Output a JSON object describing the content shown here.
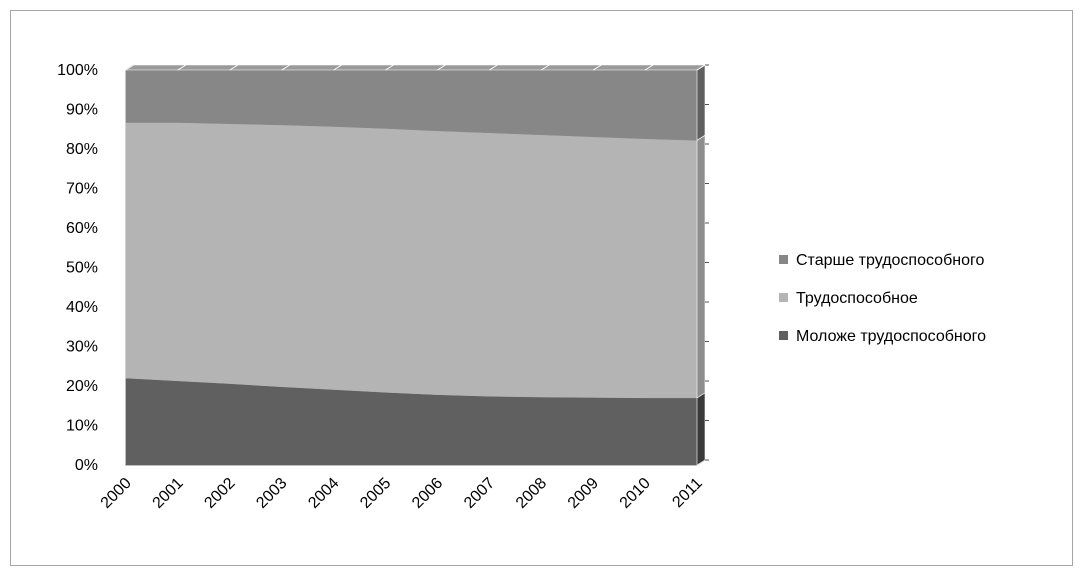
{
  "chart_data": {
    "type": "area",
    "stacked": "percent",
    "categories": [
      "2000",
      "2001",
      "2002",
      "2003",
      "2004",
      "2005",
      "2006",
      "2007",
      "2008",
      "2009",
      "2010",
      "2011"
    ],
    "series": [
      {
        "name": "Моложе трудоспособного",
        "values": [
          22,
          21.3,
          20.6,
          19.8,
          19.1,
          18.4,
          17.8,
          17.4,
          17.2,
          17.1,
          17.0,
          17.0
        ],
        "color": "#606060"
      },
      {
        "name": "Трудоспособное",
        "values": [
          64.7,
          65.4,
          65.8,
          66.3,
          66.6,
          66.8,
          66.8,
          66.7,
          66.4,
          66.0,
          65.6,
          65.2
        ],
        "color": "#b4b4b4"
      },
      {
        "name": "Старше трудоспособного",
        "values": [
          13.3,
          13.3,
          13.6,
          13.9,
          14.3,
          14.8,
          15.4,
          15.9,
          16.4,
          16.9,
          17.4,
          17.8
        ],
        "color": "#878787"
      }
    ],
    "y_ticks": [
      "0%",
      "10%",
      "20%",
      "30%",
      "40%",
      "50%",
      "60%",
      "70%",
      "80%",
      "90%",
      "100%"
    ],
    "ylim": [
      0,
      100
    ],
    "legend": {
      "position": "right",
      "order": [
        "Старше трудоспособного",
        "Трудоспособное",
        "Моложе трудоспособного"
      ]
    },
    "grid": false
  }
}
